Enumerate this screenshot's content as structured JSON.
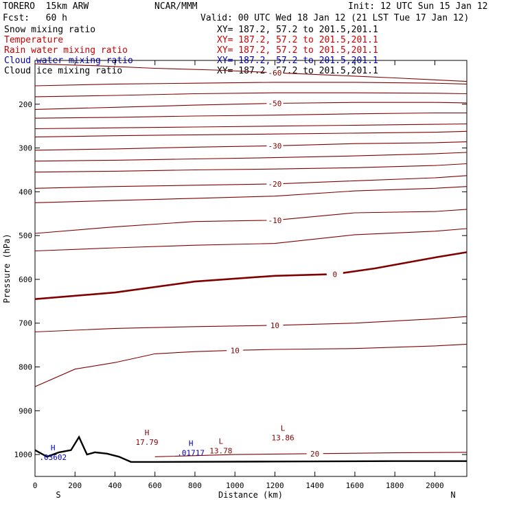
{
  "header": {
    "model_title": "TORERO  15km ARW",
    "center": "NCAR/MMM",
    "init": "Init: 12 UTC Sun 15 Jan 12",
    "fcst": "Fcst:   60 h",
    "valid": "Valid: 00 UTC Wed 18 Jan 12 (21 LST Tue 17 Jan 12)"
  },
  "fields": [
    {
      "name": "Snow mixing ratio",
      "xy": "XY= 187.2, 57.2 to 201.5,201.1",
      "color": "#000000"
    },
    {
      "name": "Temperature",
      "xy": "XY= 187.2, 57.2 to 201.5,201.1",
      "color": "#cc0000"
    },
    {
      "name": "Rain water mixing ratio",
      "xy": "XY= 187.2, 57.2 to 201.5,201.1",
      "color": "#cc0000"
    },
    {
      "name": "Cloud water mixing ratio",
      "xy": "XY= 187.2, 57.2 to 201.5,201.1",
      "color": "#0000bb"
    },
    {
      "name": "Cloud ice mixing ratio",
      "xy": "XY= 187.2, 57.2 to 201.5,201.1",
      "color": "#000000"
    }
  ],
  "chart_data": {
    "type": "line",
    "subtype": "vertical cross-section contour plot",
    "xlabel": "Distance (km)",
    "ylabel": "Pressure (hPa)",
    "xlim": [
      0,
      2160
    ],
    "ylim": [
      1050,
      100
    ],
    "x_ticks": [
      0,
      200,
      400,
      600,
      800,
      1000,
      1200,
      1400,
      1600,
      1800,
      2000
    ],
    "y_ticks": [
      200,
      300,
      400,
      500,
      600,
      700,
      800,
      900,
      1000
    ],
    "end_labels": {
      "left": "S",
      "right": "N"
    },
    "line_color": "#800000",
    "isotherms": [
      {
        "value": -60,
        "x": [
          0,
          300,
          600,
          900,
          1200,
          1500,
          1800,
          2160
        ],
        "y": [
          108,
          112,
          118,
          122,
          128,
          134,
          140,
          148
        ]
      },
      {
        "value": null,
        "x": [
          0,
          400,
          800,
          1200,
          1600,
          2000,
          2160
        ],
        "y": [
          158,
          154,
          152,
          150,
          150,
          152,
          154
        ]
      },
      {
        "value": null,
        "x": [
          0,
          400,
          800,
          1200,
          1600,
          2000,
          2160
        ],
        "y": [
          183,
          180,
          176,
          174,
          174,
          175,
          176
        ]
      },
      {
        "value": -50,
        "x": [
          0,
          400,
          800,
          1200,
          1600,
          2000,
          2160
        ],
        "y": [
          212,
          207,
          202,
          198,
          196,
          196,
          197
        ]
      },
      {
        "value": null,
        "x": [
          0,
          400,
          800,
          1200,
          1600,
          2000,
          2160
        ],
        "y": [
          232,
          230,
          227,
          225,
          222,
          220,
          220
        ]
      },
      {
        "value": null,
        "x": [
          0,
          400,
          800,
          1200,
          1600,
          2000,
          2160
        ],
        "y": [
          256,
          254,
          252,
          250,
          248,
          246,
          245
        ]
      },
      {
        "value": null,
        "x": [
          0,
          400,
          800,
          1200,
          1600,
          2000,
          2160
        ],
        "y": [
          275,
          272,
          270,
          268,
          266,
          264,
          262
        ]
      },
      {
        "value": -30,
        "x": [
          0,
          400,
          800,
          1200,
          1600,
          2000,
          2160
        ],
        "y": [
          305,
          302,
          298,
          295,
          290,
          288,
          286
        ]
      },
      {
        "value": null,
        "x": [
          0,
          400,
          800,
          1200,
          1600,
          2000,
          2160
        ],
        "y": [
          330,
          328,
          325,
          322,
          318,
          313,
          310
        ]
      },
      {
        "value": null,
        "x": [
          0,
          400,
          800,
          1200,
          1600,
          2000,
          2160
        ],
        "y": [
          355,
          353,
          350,
          348,
          345,
          340,
          336
        ]
      },
      {
        "value": -20,
        "x": [
          0,
          400,
          800,
          1200,
          1600,
          2000,
          2160
        ],
        "y": [
          392,
          388,
          385,
          382,
          375,
          368,
          363
        ]
      },
      {
        "value": null,
        "x": [
          0,
          400,
          800,
          1200,
          1600,
          2000,
          2160
        ],
        "y": [
          425,
          420,
          415,
          410,
          398,
          392,
          388
        ]
      },
      {
        "value": -10,
        "x": [
          0,
          400,
          800,
          1200,
          1600,
          2000,
          2160
        ],
        "y": [
          495,
          480,
          468,
          465,
          448,
          445,
          440
        ]
      },
      {
        "value": null,
        "x": [
          0,
          400,
          800,
          1200,
          1600,
          2000,
          2160
        ],
        "y": [
          535,
          528,
          522,
          518,
          498,
          490,
          484
        ]
      },
      {
        "value": 0,
        "x": [
          0,
          400,
          800,
          1200,
          1500,
          1700,
          2000,
          2160
        ],
        "y": [
          645,
          630,
          605,
          592,
          588,
          575,
          550,
          538
        ]
      },
      {
        "value": 10,
        "x": [
          0,
          400,
          800,
          1200,
          1600,
          2000,
          2160
        ],
        "y": [
          720,
          712,
          708,
          705,
          700,
          690,
          685
        ]
      },
      {
        "value": 10,
        "x": [
          0,
          200,
          400,
          600,
          800,
          1000,
          1200,
          1600,
          2000,
          2160
        ],
        "y": [
          845,
          805,
          790,
          770,
          765,
          762,
          760,
          758,
          752,
          748
        ]
      },
      {
        "value": 20,
        "x": [
          600,
          1000,
          1400,
          1800,
          2160
        ],
        "y": [
          1005,
          1000,
          998,
          996,
          995
        ]
      }
    ],
    "markers": [
      {
        "symbol": "H",
        "value": "17.79",
        "x": 560,
        "p": 965,
        "color": "#800000"
      },
      {
        "symbol": "L",
        "value": "13.78",
        "x": 930,
        "p": 985,
        "color": "#800000"
      },
      {
        "symbol": "L",
        "value": "13.86",
        "x": 1240,
        "p": 955,
        "color": "#800000"
      },
      {
        "symbol": "H",
        "value": ".01717",
        "x": 780,
        "p": 990,
        "color": "#0000bb"
      },
      {
        "symbol": "H",
        "value": ".03602",
        "x": 90,
        "p": 1000,
        "color": "#0000bb"
      }
    ],
    "terrain": {
      "x": [
        0,
        60,
        120,
        180,
        220,
        260,
        300,
        360,
        420,
        480,
        600,
        1200,
        1800,
        2160
      ],
      "p": [
        990,
        1005,
        995,
        990,
        960,
        1000,
        995,
        998,
        1005,
        1017,
        1017,
        1016,
        1015,
        1015
      ]
    }
  }
}
